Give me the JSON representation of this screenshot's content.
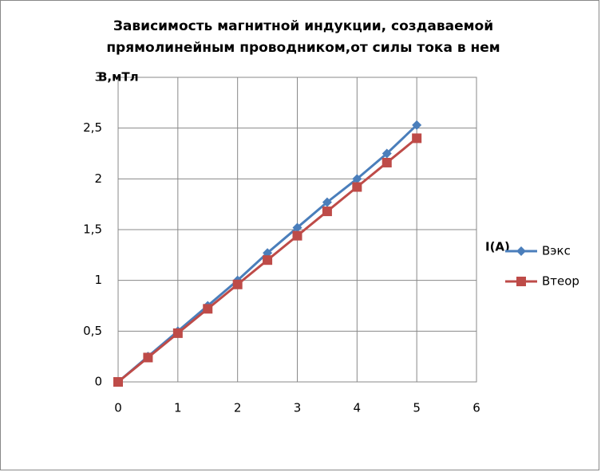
{
  "chart_data": {
    "type": "line",
    "title": [
      "Зависимость магнитной индукции, создаваемой",
      "прямолинейным проводником,от силы тока в нем"
    ],
    "x_label": "I(A)",
    "y_label": "В,мТл",
    "x": [
      0,
      0.5,
      1,
      1.5,
      2,
      2.5,
      3,
      3.5,
      4,
      4.5,
      5
    ],
    "series": [
      {
        "name": "Вэкс",
        "color": "#4a7ebb",
        "marker": "diamond",
        "values": [
          0,
          0.25,
          0.5,
          0.75,
          1.0,
          1.27,
          1.52,
          1.77,
          2.0,
          2.25,
          2.53
        ]
      },
      {
        "name": "Втеор",
        "color": "#be4b48",
        "marker": "square",
        "values": [
          0,
          0.24,
          0.48,
          0.72,
          0.96,
          1.2,
          1.44,
          1.68,
          1.92,
          2.16,
          2.4
        ]
      }
    ],
    "xlim": [
      0,
      6
    ],
    "xticks": [
      0,
      1,
      2,
      3,
      4,
      5,
      6
    ],
    "ylim": [
      0,
      3
    ],
    "yticks": [
      0,
      {
        "value": 0.5,
        "label": "0,5"
      },
      1,
      {
        "value": 1.5,
        "label": "1,5"
      },
      2,
      {
        "value": 2.5,
        "label": "2,5"
      },
      3
    ],
    "grid": true,
    "legend": "right"
  }
}
